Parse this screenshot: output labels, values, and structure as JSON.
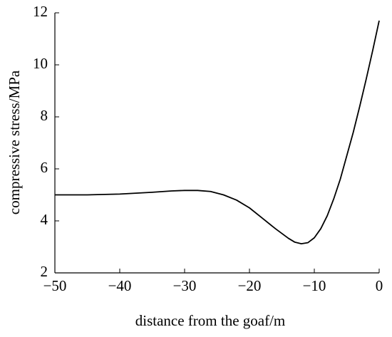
{
  "chart_data": {
    "type": "line",
    "x_label": "distance from the goaf/m",
    "y_label": "compressive stress/MPa",
    "x": [
      -50,
      -45,
      -40,
      -35,
      -32,
      -30,
      -28,
      -26,
      -24,
      -22,
      -20,
      -18,
      -16,
      -14,
      -13,
      -12,
      -11,
      -10,
      -9,
      -8,
      -7,
      -6,
      -5,
      -4,
      -3,
      -2,
      -1,
      0
    ],
    "series": [
      {
        "color": "#000000",
        "values": [
          5.0,
          5.0,
          5.03,
          5.1,
          5.15,
          5.17,
          5.17,
          5.13,
          5.0,
          4.8,
          4.5,
          4.1,
          3.7,
          3.33,
          3.18,
          3.12,
          3.16,
          3.35,
          3.7,
          4.2,
          4.85,
          5.6,
          6.5,
          7.4,
          8.4,
          9.45,
          10.55,
          11.7
        ]
      }
    ],
    "xlim": [
      -50,
      0
    ],
    "ylim": [
      2,
      12
    ],
    "xticks": [
      {
        "value": -50,
        "label": "−50"
      },
      {
        "value": -40,
        "label": "−40"
      },
      {
        "value": -30,
        "label": "−30"
      },
      {
        "value": -20,
        "label": "−20"
      },
      {
        "value": -10,
        "label": "−10"
      },
      0
    ],
    "yticks": [
      2,
      4,
      6,
      8,
      10,
      12
    ]
  }
}
